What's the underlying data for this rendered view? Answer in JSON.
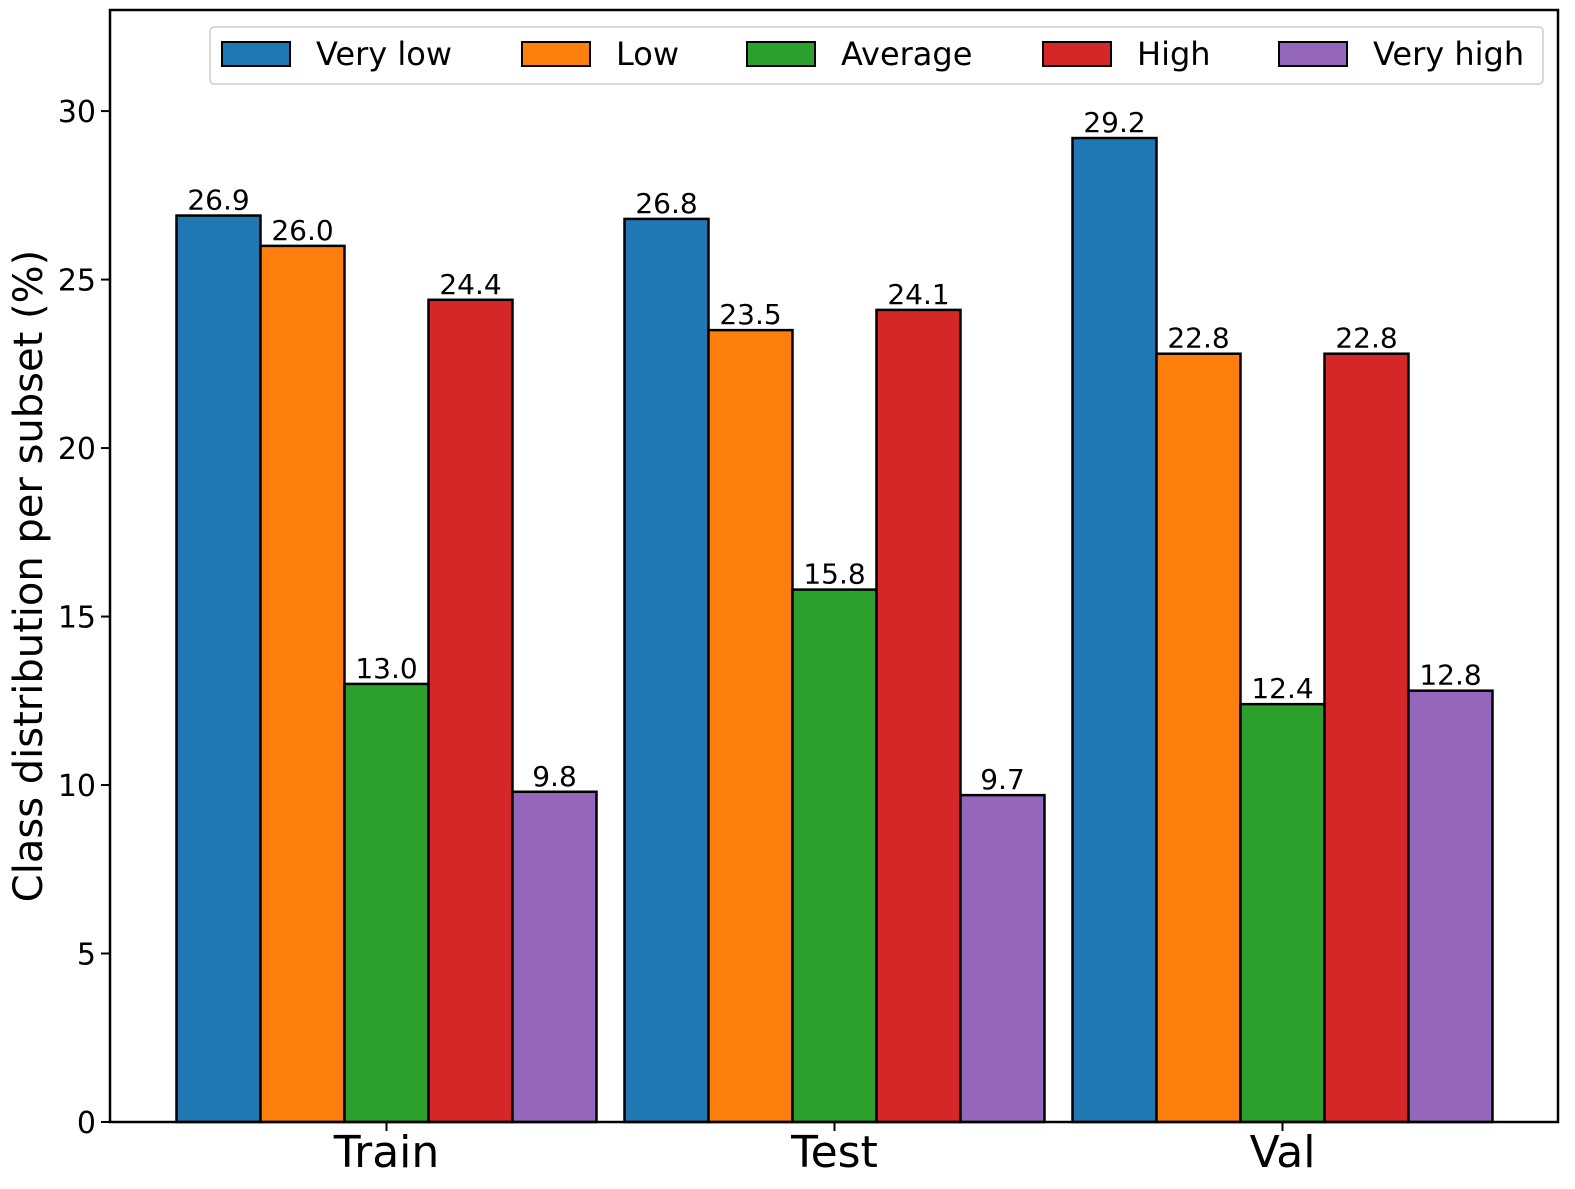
{
  "chart_data": {
    "type": "bar",
    "categories": [
      "Train",
      "Test",
      "Val"
    ],
    "series": [
      {
        "name": "Very low",
        "color": "#1f77b4",
        "values": [
          26.9,
          26.8,
          29.2
        ],
        "labels": [
          "26.9",
          "26.8",
          "29.2"
        ]
      },
      {
        "name": "Low",
        "color": "#ff7f0e",
        "values": [
          26.0,
          23.5,
          22.8
        ],
        "labels": [
          "26.0",
          "23.5",
          "22.8"
        ]
      },
      {
        "name": "Average",
        "color": "#2ca02c",
        "values": [
          13.0,
          15.8,
          12.4
        ],
        "labels": [
          "13.0",
          "15.8",
          "12.4"
        ]
      },
      {
        "name": "High",
        "color": "#d62728",
        "values": [
          24.4,
          24.1,
          22.8
        ],
        "labels": [
          "24.4",
          "24.1",
          "22.8"
        ]
      },
      {
        "name": "Very high",
        "color": "#9467bd",
        "values": [
          9.8,
          9.7,
          12.8
        ],
        "labels": [
          "9.8",
          "9.7",
          "12.8"
        ]
      }
    ],
    "title": "",
    "xlabel": "",
    "ylabel": "Class distribution per subset (%)",
    "ylim": [
      0,
      33
    ],
    "yticks": [
      0,
      5,
      10,
      15,
      20,
      25,
      30
    ],
    "grid": false,
    "legend_position": "top"
  }
}
